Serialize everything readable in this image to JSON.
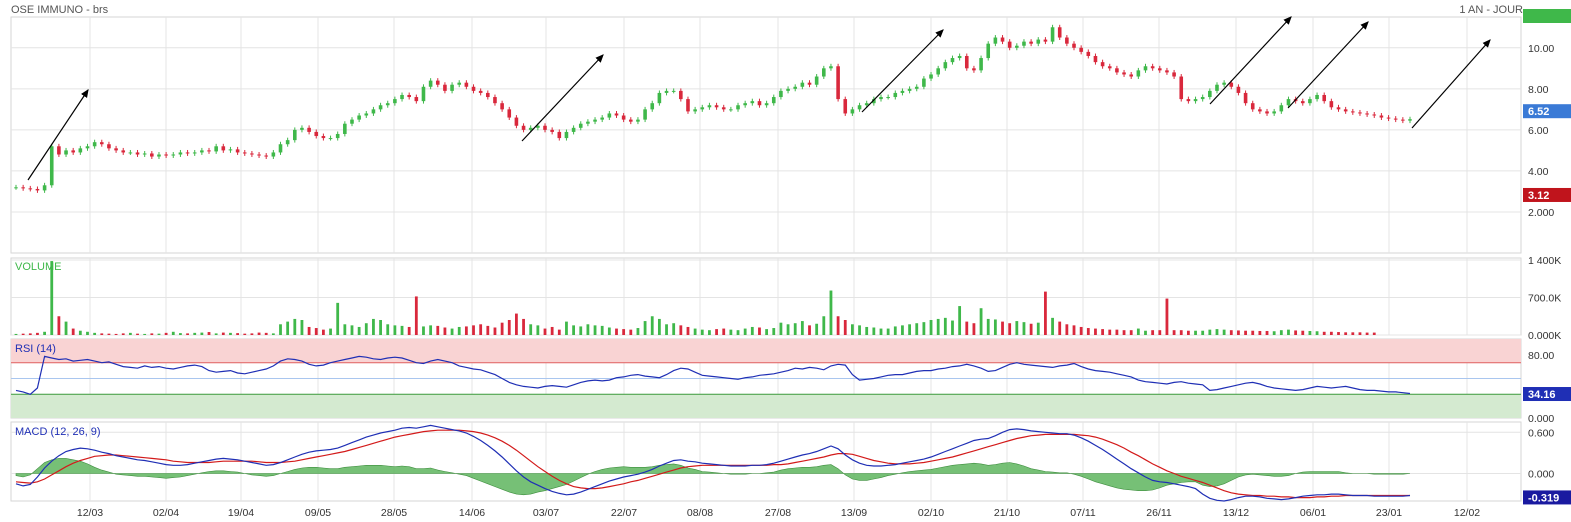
{
  "header": {
    "title": "OSE IMMUNO - brs",
    "period": "1 AN - JOUR"
  },
  "colors": {
    "up": "#3fb84a",
    "down": "#d9283c",
    "rsi_line": "#1f2fb5",
    "macd_line": "#1f2fb5",
    "signal_line": "#d31a1a",
    "hist": "#5eb55e",
    "grid": "#e4e4e4",
    "rsi_overbought_fill": "#f9d3d3",
    "rsi_oversold_fill": "#d4ead0"
  },
  "chart_data": [
    {
      "type": "candlestick",
      "name": "price",
      "title": "OSE IMMUNO - brs",
      "ylim": [
        0,
        11.5
      ],
      "y_ticks": [
        "2.000",
        "4.00",
        "6.00",
        "8.00",
        "10.00"
      ],
      "last_value_badge": "6.52",
      "reference_badge": "3.12",
      "x_ticks": [
        "12/03",
        "02/04",
        "19/04",
        "09/05",
        "28/05",
        "14/06",
        "03/07",
        "22/07",
        "08/08",
        "27/08",
        "13/09",
        "02/10",
        "21/10",
        "07/11",
        "26/11",
        "13/12",
        "06/01",
        "23/01",
        "12/02"
      ],
      "close_series": [
        3.2,
        3.15,
        3.12,
        3.05,
        3.3,
        5.2,
        4.8,
        5.0,
        4.9,
        5.1,
        5.2,
        5.4,
        5.3,
        5.1,
        5.0,
        4.9,
        4.9,
        4.8,
        4.85,
        4.7,
        4.8,
        4.75,
        4.8,
        4.9,
        4.85,
        4.9,
        5.0,
        4.95,
        5.2,
        5.0,
        5.05,
        4.9,
        4.85,
        4.8,
        4.75,
        4.7,
        4.9,
        5.3,
        5.5,
        6.0,
        6.1,
        5.9,
        5.7,
        5.6,
        5.6,
        5.8,
        6.3,
        6.5,
        6.7,
        6.8,
        7.0,
        7.2,
        7.3,
        7.5,
        7.7,
        7.6,
        7.4,
        8.1,
        8.4,
        8.2,
        7.9,
        8.2,
        8.3,
        8.1,
        7.9,
        7.8,
        7.6,
        7.3,
        7.0,
        6.6,
        6.2,
        6.0,
        6.1,
        6.2,
        6.0,
        5.9,
        5.6,
        5.9,
        6.1,
        6.3,
        6.4,
        6.5,
        6.6,
        6.8,
        6.7,
        6.5,
        6.4,
        6.5,
        7.0,
        7.3,
        7.8,
        7.9,
        7.9,
        7.5,
        6.9,
        7.0,
        7.1,
        7.2,
        7.1,
        7.0,
        7.0,
        7.2,
        7.3,
        7.4,
        7.2,
        7.3,
        7.6,
        7.9,
        8.0,
        8.1,
        8.3,
        8.2,
        8.6,
        9.0,
        9.1,
        7.5,
        6.8,
        7.0,
        7.2,
        7.3,
        7.5,
        7.6,
        7.6,
        7.8,
        7.9,
        8.0,
        8.1,
        8.5,
        8.7,
        9.0,
        9.3,
        9.5,
        9.6,
        9.0,
        8.9,
        9.5,
        10.2,
        10.5,
        10.3,
        10.0,
        10.1,
        10.3,
        10.2,
        10.4,
        10.3,
        11.0,
        10.5,
        10.2,
        10.0,
        9.8,
        9.6,
        9.3,
        9.1,
        9.0,
        8.8,
        8.7,
        8.6,
        8.9,
        9.1,
        9.0,
        8.9,
        8.8,
        8.6,
        7.5,
        7.4,
        7.5,
        7.6,
        7.9,
        8.2,
        8.3,
        8.1,
        7.8,
        7.3,
        7.0,
        6.9,
        6.8,
        6.9,
        7.2,
        7.5,
        7.4,
        7.3,
        7.5,
        7.7,
        7.4,
        7.1,
        7.0,
        6.9,
        6.85,
        6.8,
        6.75,
        6.7,
        6.6,
        6.55,
        6.5,
        6.45,
        6.52
      ],
      "annotations": "trend arrows (pointing up-right)"
    },
    {
      "type": "bar",
      "name": "volume",
      "title": "VOLUME",
      "ylim": [
        0,
        1400
      ],
      "y_ticks": [
        "0.000K",
        "700.0K",
        "1 400K"
      ],
      "values_k": [
        20,
        25,
        30,
        40,
        60,
        1380,
        350,
        250,
        120,
        80,
        60,
        40,
        30,
        25,
        20,
        30,
        40,
        25,
        20,
        30,
        25,
        40,
        60,
        35,
        30,
        40,
        45,
        55,
        30,
        45,
        40,
        35,
        25,
        30,
        45,
        40,
        30,
        200,
        250,
        300,
        280,
        150,
        130,
        100,
        120,
        600,
        200,
        180,
        150,
        220,
        300,
        280,
        200,
        180,
        170,
        150,
        720,
        160,
        180,
        170,
        140,
        120,
        150,
        160,
        180,
        200,
        170,
        140,
        230,
        280,
        400,
        300,
        200,
        180,
        120,
        150,
        100,
        250,
        180,
        160,
        200,
        180,
        170,
        140,
        120,
        110,
        100,
        130,
        260,
        350,
        300,
        200,
        220,
        180,
        150,
        120,
        100,
        90,
        110,
        120,
        100,
        90,
        120,
        150,
        140,
        110,
        130,
        230,
        200,
        220,
        260,
        180,
        210,
        350,
        830,
        350,
        280,
        200,
        180,
        150,
        140,
        120,
        120,
        160,
        180,
        200,
        220,
        240,
        280,
        300,
        320,
        270,
        540,
        250,
        220,
        500,
        300,
        290,
        250,
        220,
        260,
        240,
        210,
        230,
        810,
        320,
        250,
        200,
        180,
        150,
        130,
        120,
        110,
        100,
        100,
        90,
        90,
        120,
        80,
        90,
        90,
        680,
        90,
        90,
        80,
        80,
        80,
        100,
        110,
        100,
        90,
        85,
        80,
        80,
        75,
        75,
        70,
        90,
        100,
        85,
        80,
        75,
        70,
        60,
        60,
        55,
        50,
        50,
        50,
        45,
        45
      ],
      "directions": "up/down colour follows price candle"
    },
    {
      "type": "line",
      "name": "rsi",
      "title": "RSI (14)",
      "ylim": [
        0,
        100
      ],
      "y_ticks": [
        "0.000",
        "80.00"
      ],
      "zones": [
        30,
        70
      ],
      "last_value_badge": "34.16",
      "values": [
        35,
        33,
        30,
        38,
        78,
        76,
        74,
        75,
        72,
        73,
        74,
        72,
        70,
        71,
        68,
        65,
        64,
        63,
        66,
        64,
        65,
        63,
        62,
        64,
        66,
        67,
        65,
        60,
        58,
        59,
        60,
        57,
        56,
        58,
        60,
        62,
        66,
        72,
        75,
        74,
        72,
        68,
        66,
        67,
        70,
        72,
        74,
        76,
        78,
        77,
        75,
        74,
        76,
        77,
        76,
        73,
        70,
        69,
        72,
        74,
        72,
        70,
        66,
        64,
        62,
        61,
        58,
        55,
        50,
        45,
        42,
        40,
        39,
        38,
        40,
        41,
        40,
        39,
        42,
        45,
        47,
        48,
        47,
        48,
        51,
        52,
        54,
        55,
        53,
        52,
        51,
        55,
        60,
        63,
        62,
        58,
        54,
        53,
        52,
        51,
        50,
        49,
        51,
        52,
        54,
        55,
        56,
        58,
        60,
        63,
        62,
        64,
        63,
        61,
        66,
        68,
        67,
        55,
        48,
        49,
        50,
        52,
        54,
        55,
        55,
        57,
        59,
        60,
        60,
        62,
        63,
        65,
        66,
        68,
        66,
        63,
        59,
        60,
        64,
        68,
        70,
        68,
        67,
        66,
        65,
        64,
        66,
        67,
        69,
        65,
        62,
        60,
        59,
        58,
        56,
        54,
        52,
        48,
        46,
        45,
        44,
        43,
        45,
        46,
        44,
        43,
        42,
        35,
        36,
        38,
        40,
        42,
        44,
        45,
        43,
        40,
        38,
        37,
        36,
        35,
        36,
        38,
        40,
        39,
        38,
        39,
        40,
        38,
        36,
        35,
        35,
        34,
        33,
        33,
        32,
        31,
        30,
        31,
        34.16
      ]
    },
    {
      "type": "line",
      "name": "macd",
      "title": "MACD (12, 26, 9)",
      "ylim": [
        -0.4,
        0.75
      ],
      "y_ticks": [
        "0.000",
        "0.600"
      ],
      "last_value_badge": "-0.319",
      "macd": [
        -0.15,
        -0.18,
        -0.16,
        -0.05,
        0.08,
        0.18,
        0.26,
        0.32,
        0.35,
        0.37,
        0.36,
        0.34,
        0.31,
        0.29,
        0.26,
        0.24,
        0.22,
        0.2,
        0.19,
        0.17,
        0.15,
        0.13,
        0.12,
        0.12,
        0.13,
        0.15,
        0.17,
        0.19,
        0.21,
        0.22,
        0.21,
        0.2,
        0.18,
        0.16,
        0.14,
        0.12,
        0.13,
        0.16,
        0.2,
        0.24,
        0.28,
        0.31,
        0.33,
        0.34,
        0.35,
        0.37,
        0.41,
        0.45,
        0.49,
        0.53,
        0.56,
        0.59,
        0.61,
        0.63,
        0.66,
        0.67,
        0.66,
        0.68,
        0.7,
        0.68,
        0.66,
        0.64,
        0.62,
        0.59,
        0.54,
        0.48,
        0.41,
        0.33,
        0.24,
        0.14,
        0.04,
        -0.05,
        -0.12,
        -0.17,
        -0.22,
        -0.26,
        -0.29,
        -0.31,
        -0.3,
        -0.27,
        -0.23,
        -0.19,
        -0.15,
        -0.11,
        -0.08,
        -0.05,
        -0.03,
        -0.01,
        0.02,
        0.06,
        0.11,
        0.15,
        0.19,
        0.2,
        0.18,
        0.17,
        0.15,
        0.14,
        0.13,
        0.12,
        0.11,
        0.11,
        0.11,
        0.12,
        0.12,
        0.13,
        0.15,
        0.18,
        0.21,
        0.24,
        0.27,
        0.29,
        0.32,
        0.36,
        0.4,
        0.36,
        0.27,
        0.2,
        0.15,
        0.12,
        0.11,
        0.11,
        0.12,
        0.13,
        0.15,
        0.17,
        0.19,
        0.21,
        0.24,
        0.28,
        0.32,
        0.36,
        0.4,
        0.44,
        0.48,
        0.5,
        0.51,
        0.55,
        0.6,
        0.64,
        0.65,
        0.64,
        0.62,
        0.61,
        0.6,
        0.59,
        0.58,
        0.58,
        0.56,
        0.52,
        0.47,
        0.41,
        0.35,
        0.28,
        0.21,
        0.14,
        0.07,
        0.01,
        -0.05,
        -0.1,
        -0.12,
        -0.13,
        -0.15,
        -0.17,
        -0.19,
        -0.22,
        -0.3,
        -0.36,
        -0.39,
        -0.4,
        -0.38,
        -0.35,
        -0.33,
        -0.33,
        -0.34,
        -0.36,
        -0.37,
        -0.38,
        -0.37,
        -0.35,
        -0.33,
        -0.32,
        -0.31,
        -0.31,
        -0.3,
        -0.3,
        -0.31,
        -0.32,
        -0.32,
        -0.32,
        -0.33,
        -0.33,
        -0.33,
        -0.33,
        -0.33,
        -0.32,
        -0.32,
        -0.319
      ],
      "signal": [
        -0.12,
        -0.13,
        -0.14,
        -0.12,
        -0.08,
        -0.02,
        0.04,
        0.1,
        0.15,
        0.19,
        0.22,
        0.25,
        0.26,
        0.27,
        0.27,
        0.26,
        0.25,
        0.24,
        0.23,
        0.22,
        0.21,
        0.2,
        0.18,
        0.17,
        0.16,
        0.16,
        0.16,
        0.16,
        0.17,
        0.18,
        0.18,
        0.18,
        0.18,
        0.18,
        0.17,
        0.16,
        0.16,
        0.16,
        0.17,
        0.18,
        0.2,
        0.22,
        0.24,
        0.26,
        0.28,
        0.3,
        0.32,
        0.35,
        0.38,
        0.41,
        0.44,
        0.47,
        0.5,
        0.53,
        0.55,
        0.57,
        0.59,
        0.61,
        0.62,
        0.63,
        0.63,
        0.63,
        0.63,
        0.62,
        0.61,
        0.59,
        0.56,
        0.52,
        0.47,
        0.41,
        0.34,
        0.26,
        0.18,
        0.1,
        0.03,
        -0.04,
        -0.1,
        -0.15,
        -0.19,
        -0.21,
        -0.22,
        -0.22,
        -0.21,
        -0.19,
        -0.17,
        -0.15,
        -0.12,
        -0.1,
        -0.07,
        -0.04,
        -0.01,
        0.02,
        0.05,
        0.08,
        0.1,
        0.11,
        0.12,
        0.12,
        0.12,
        0.12,
        0.12,
        0.12,
        0.12,
        0.12,
        0.12,
        0.12,
        0.13,
        0.13,
        0.14,
        0.16,
        0.18,
        0.2,
        0.22,
        0.24,
        0.27,
        0.29,
        0.29,
        0.28,
        0.25,
        0.22,
        0.19,
        0.17,
        0.15,
        0.14,
        0.14,
        0.14,
        0.15,
        0.16,
        0.18,
        0.2,
        0.22,
        0.24,
        0.27,
        0.3,
        0.33,
        0.36,
        0.39,
        0.42,
        0.45,
        0.48,
        0.51,
        0.53,
        0.55,
        0.56,
        0.57,
        0.57,
        0.57,
        0.57,
        0.57,
        0.56,
        0.55,
        0.53,
        0.5,
        0.46,
        0.42,
        0.37,
        0.31,
        0.26,
        0.2,
        0.14,
        0.09,
        0.04,
        0.0,
        -0.04,
        -0.07,
        -0.1,
        -0.13,
        -0.17,
        -0.21,
        -0.25,
        -0.28,
        -0.3,
        -0.31,
        -0.32,
        -0.32,
        -0.33,
        -0.33,
        -0.34,
        -0.34,
        -0.35,
        -0.35,
        -0.35,
        -0.34,
        -0.34,
        -0.33,
        -0.33,
        -0.32,
        -0.32,
        -0.32,
        -0.32,
        -0.32,
        -0.32,
        -0.32,
        -0.32,
        -0.32,
        -0.32,
        -0.32,
        -0.32,
        -0.32
      ]
    }
  ]
}
